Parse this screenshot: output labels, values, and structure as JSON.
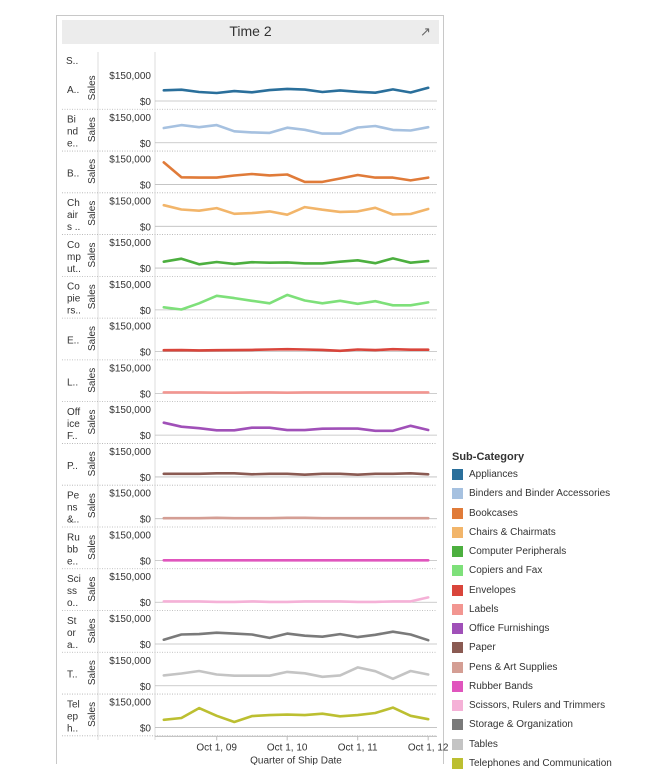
{
  "header": {
    "title": "Time 2",
    "popout_icon": "popout-icon"
  },
  "chart_data": {
    "type": "line",
    "title": "Time 2",
    "row_header_label": "S..",
    "xlabel": "Quarter of Ship Date",
    "ylabel": "Sales",
    "ylim": [
      0,
      150000
    ],
    "ytick_labels": [
      "$150,000",
      "$0"
    ],
    "xtick_labels": [
      "Oct 1, 09",
      "Oct 1, 10",
      "Oct 1, 11",
      "Oct 1, 12"
    ],
    "x": [
      "2009 Q1",
      "2009 Q2",
      "2009 Q3",
      "2009 Q4",
      "2010 Q1",
      "2010 Q2",
      "2010 Q3",
      "2010 Q4",
      "2011 Q1",
      "2011 Q2",
      "2011 Q3",
      "2011 Q4",
      "2012 Q1",
      "2012 Q2",
      "2012 Q3",
      "2012 Q4"
    ],
    "legend_title": "Sub-Category",
    "legend_position": "right",
    "series": [
      {
        "name": "Appliances",
        "row_label": [
          "A.."
        ],
        "color": "#2a6f9b",
        "values": [
          62000,
          65000,
          52000,
          46000,
          57000,
          50000,
          63000,
          70000,
          66000,
          52000,
          61000,
          53000,
          48000,
          67000,
          49000,
          76000
        ]
      },
      {
        "name": "Binders and Binder Accessories",
        "row_label": [
          "Bi",
          "nd",
          "e.."
        ],
        "color": "#a6c1e0",
        "values": [
          85000,
          102000,
          90000,
          102000,
          66000,
          60000,
          57000,
          87000,
          75000,
          53000,
          53000,
          88000,
          97000,
          74000,
          71000,
          90000
        ]
      },
      {
        "name": "Bookcases",
        "row_label": [
          "B.."
        ],
        "color": "#e07b39",
        "values": [
          128000,
          42000,
          40000,
          40000,
          52000,
          61000,
          53000,
          58000,
          15000,
          15000,
          35000,
          55000,
          40000,
          40000,
          24000,
          40000
        ]
      },
      {
        "name": "Chairs & Chairmats",
        "row_label": [
          "Ch",
          "air",
          "s .."
        ],
        "color": "#f2b56a",
        "values": [
          122000,
          97000,
          90000,
          105000,
          72000,
          76000,
          86000,
          67000,
          111000,
          96000,
          83000,
          86000,
          107000,
          68000,
          71000,
          100000
        ]
      },
      {
        "name": "Computer Peripherals",
        "row_label": [
          "Co",
          "mp",
          "ut.."
        ],
        "color": "#4caf3f",
        "values": [
          37000,
          54000,
          22000,
          35000,
          24000,
          34000,
          31000,
          33000,
          27000,
          27000,
          37000,
          45000,
          28000,
          56000,
          31000,
          40000
        ]
      },
      {
        "name": "Copiers and Fax",
        "row_label": [
          "Co",
          "pie",
          "rs.."
        ],
        "color": "#7ee07a",
        "values": [
          15000,
          2000,
          38000,
          81000,
          68000,
          52000,
          38000,
          86000,
          54000,
          38000,
          52000,
          35000,
          50000,
          26000,
          26000,
          43000
        ]
      },
      {
        "name": "Envelopes",
        "row_label": [
          "E.."
        ],
        "color": "#d9453b",
        "values": [
          8000,
          9000,
          7000,
          8000,
          9000,
          10000,
          12000,
          14000,
          12000,
          10000,
          5000,
          12000,
          9000,
          14000,
          11000,
          11000
        ]
      },
      {
        "name": "Labels",
        "row_label": [
          "L.."
        ],
        "color": "#f29691",
        "values": [
          6000,
          6000,
          6000,
          4000,
          4000,
          6000,
          6000,
          4000,
          6000,
          6000,
          6000,
          6000,
          6000,
          6000,
          6000,
          6000
        ]
      },
      {
        "name": "Office Furnishings",
        "row_label": [
          "Off",
          "ice",
          "F.."
        ],
        "color": "#a050b8",
        "values": [
          72000,
          49000,
          40000,
          28000,
          28000,
          43000,
          43000,
          29000,
          29000,
          37000,
          38000,
          38000,
          25000,
          25000,
          54000,
          30000
        ]
      },
      {
        "name": "Paper",
        "row_label": [
          "P.."
        ],
        "color": "#8a5a52",
        "values": [
          18000,
          18000,
          18000,
          21000,
          21000,
          15000,
          18000,
          18000,
          13000,
          18000,
          18000,
          13000,
          18000,
          18000,
          21000,
          15000
        ]
      },
      {
        "name": "Pens & Art Supplies",
        "row_label": [
          "Pe",
          "ns",
          "&.."
        ],
        "color": "#d49e94",
        "values": [
          3000,
          3000,
          3000,
          5000,
          3000,
          3000,
          3000,
          5000,
          5000,
          3000,
          3000,
          3000,
          3000,
          3000,
          3000,
          3000
        ]
      },
      {
        "name": "Rubber Bands",
        "row_label": [
          "Ru",
          "bb",
          "e.."
        ],
        "color": "#e055bd",
        "values": [
          1000,
          1000,
          1000,
          1000,
          1000,
          1000,
          1000,
          1000,
          1000,
          1000,
          1000,
          1000,
          1000,
          1000,
          1000,
          1000
        ]
      },
      {
        "name": "Scissors, Rulers and Trimmers",
        "row_label": [
          "Sci",
          "ss",
          "o.."
        ],
        "color": "#f5b1d7",
        "values": [
          5000,
          5000,
          5000,
          2000,
          2000,
          5000,
          2000,
          2000,
          5000,
          5000,
          5000,
          2000,
          2000,
          5000,
          5000,
          28000
        ]
      },
      {
        "name": "Storage & Organization",
        "row_label": [
          "St",
          "or",
          "a.."
        ],
        "color": "#7a7a7a",
        "values": [
          25000,
          55000,
          57000,
          65000,
          60000,
          55000,
          35000,
          60000,
          48000,
          42000,
          57000,
          40000,
          53000,
          71000,
          55000,
          22000
        ]
      },
      {
        "name": "Tables",
        "row_label": [
          "T.."
        ],
        "color": "#c4c4c4",
        "values": [
          60000,
          71000,
          85000,
          65000,
          58000,
          58000,
          58000,
          80000,
          72000,
          52000,
          60000,
          106000,
          84000,
          40000,
          85000,
          65000
        ]
      },
      {
        "name": "Telephones and Communication",
        "row_label": [
          "Tel",
          "ep",
          "h.."
        ],
        "color": "#bcbf31",
        "values": [
          45000,
          55000,
          112000,
          68000,
          32000,
          66000,
          72000,
          75000,
          72000,
          80000,
          65000,
          72000,
          84000,
          115000,
          68000,
          48000
        ]
      }
    ]
  }
}
